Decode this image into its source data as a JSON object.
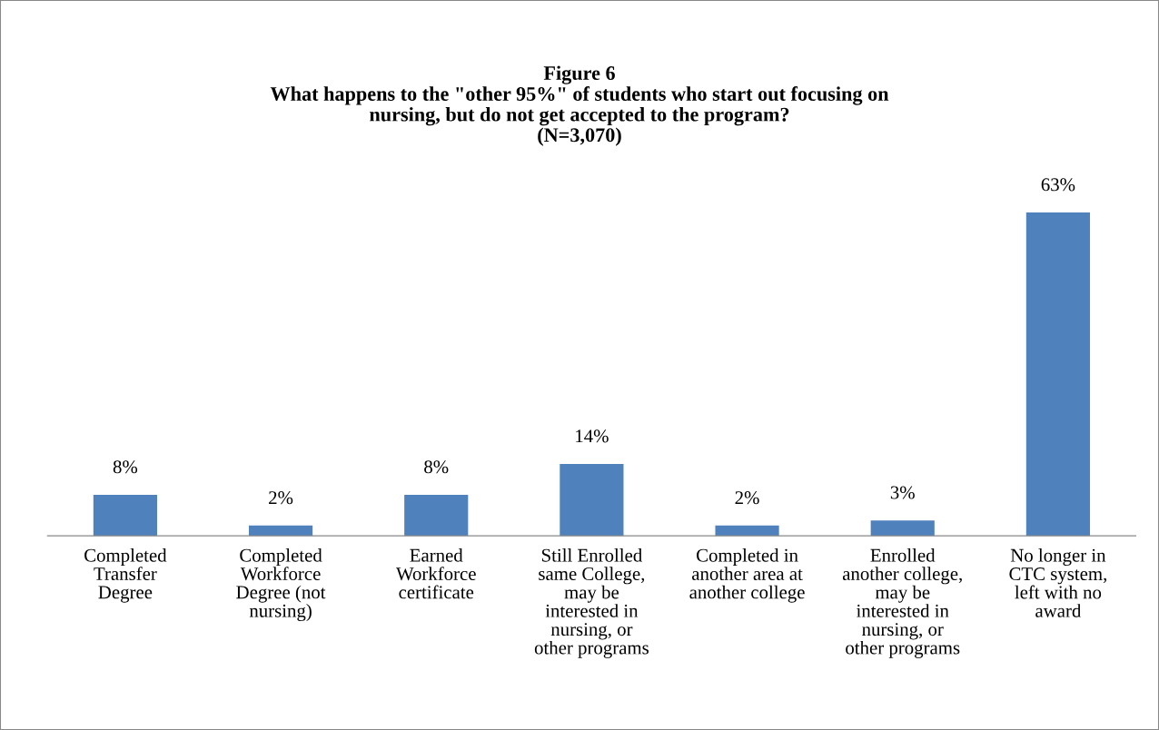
{
  "chart_data": {
    "type": "bar",
    "title": "Figure 6\nWhat happens to the \"other 95%\" of students who start out focusing on\nnursing, but do not get accepted to the program?\n(N=3,070)",
    "categories": [
      "Completed\nTransfer\nDegree",
      "Completed\nWorkforce\nDegree (not\nnursing)",
      "Earned\nWorkforce\ncertificate",
      "Still Enrolled\nsame College,\nmay be\ninterested in\nnursing, or\nother programs",
      "Completed in\nanother area at\nanother college",
      "Enrolled\nanother college,\nmay be\ninterested in\nnursing, or\nother programs",
      "No longer in\nCTC system,\nleft with no\naward"
    ],
    "values": [
      8,
      2,
      8,
      14,
      2,
      3,
      63
    ],
    "value_labels": [
      "8%",
      "2%",
      "8%",
      "14%",
      "2%",
      "3%",
      "63%"
    ],
    "color": "#4f81bd",
    "grid": false,
    "legend": false
  }
}
